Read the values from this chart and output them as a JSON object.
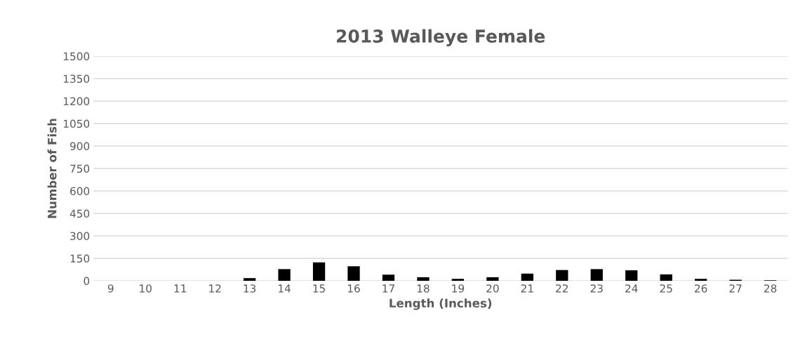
{
  "chart_data": {
    "type": "bar",
    "title": "2013 Walleye Female",
    "xlabel": "Length (Inches)",
    "ylabel": "Number of Fish",
    "categories": [
      "9",
      "10",
      "11",
      "12",
      "13",
      "14",
      "15",
      "16",
      "17",
      "18",
      "19",
      "20",
      "21",
      "22",
      "23",
      "24",
      "25",
      "26",
      "27",
      "28"
    ],
    "values": [
      0,
      0,
      0,
      0,
      18,
      78,
      123,
      97,
      41,
      24,
      13,
      24,
      48,
      72,
      78,
      70,
      43,
      13,
      7,
      3
    ],
    "color": "#000000",
    "ylim": [
      0,
      1500
    ],
    "yticks": [
      0,
      150,
      300,
      450,
      600,
      750,
      900,
      1050,
      1200,
      1350,
      1500
    ],
    "grid": "y"
  }
}
